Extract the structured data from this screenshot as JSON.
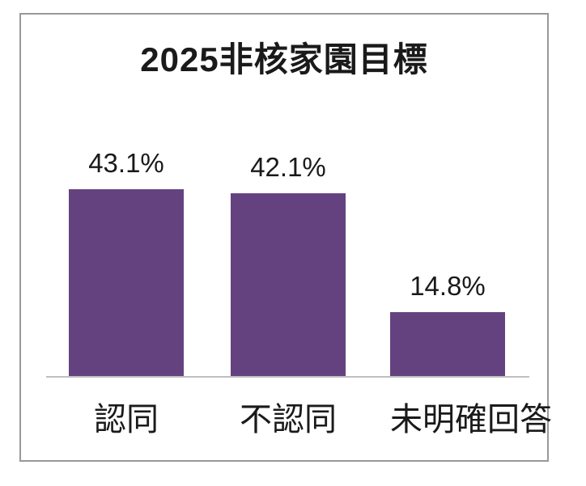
{
  "chart_data": {
    "type": "bar",
    "title": "2025非核家園目標",
    "categories": [
      "認同",
      "不認同",
      "未明確回答"
    ],
    "values": [
      43.1,
      42.1,
      14.8
    ],
    "data_labels": [
      "43.1%",
      "42.1%",
      "14.8%"
    ],
    "unit": "%",
    "ylim": [
      0,
      50
    ],
    "grid": false,
    "legend": "none",
    "y_axis_labels_visible": false,
    "colors": {
      "bar": "#64427f",
      "axis_line": "#bfbfbf",
      "frame_border": "#999999",
      "text": "#1a1a1a",
      "background": "#ffffff"
    }
  }
}
